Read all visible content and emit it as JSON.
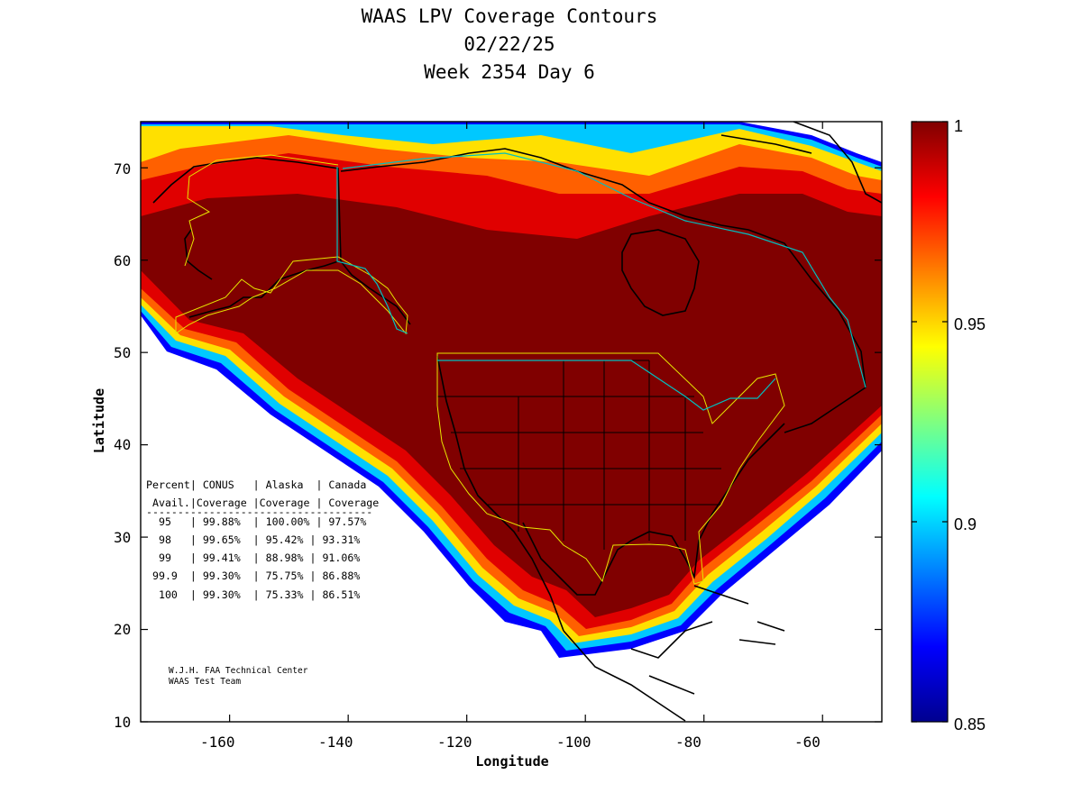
{
  "title": {
    "line1": "WAAS LPV Coverage Contours",
    "line2": "02/22/25",
    "line3": "Week 2354 Day 6"
  },
  "axes": {
    "xlabel": "Longitude",
    "ylabel": "Latitude",
    "xticks": [
      "-160",
      "-140",
      "-120",
      "-100",
      "-80",
      "-60"
    ],
    "yticks": [
      "70",
      "60",
      "50",
      "40",
      "30",
      "20",
      "10"
    ],
    "xlim": [
      -175,
      -50
    ],
    "ylim": [
      10,
      75
    ]
  },
  "colorbar": {
    "ticks": [
      "1",
      "0.95",
      "0.9",
      "0.85"
    ],
    "range": [
      0.85,
      1.0
    ],
    "colormap": "jet"
  },
  "colors": {
    "max": "#800000",
    "red": "#ff0000",
    "orange": "#ff8000",
    "yellow": "#ffff00",
    "cyan": "#00ffff",
    "blue": "#0000ff",
    "navy": "#000080",
    "service_boundary": "#e6e600",
    "border_line": "#00c0c0"
  },
  "stats_table": {
    "header1": "Percent| CONUS   | Alaska  | Canada",
    "header2": " Avail.|Coverage |Coverage | Coverage",
    "rule": "------------------------------------",
    "rows": [
      "  95   | 99.88%  | 100.00% | 97.57%",
      "  98   | 99.65%  | 95.42% | 93.31%",
      "  99   | 99.41%  | 88.98% | 91.06%",
      " 99.9  | 99.30%  | 75.75% | 86.88%",
      "  100  | 99.30%  | 75.33% | 86.51%"
    ]
  },
  "credit": {
    "line1": "W.J.H. FAA Technical Center",
    "line2": "WAAS Test Team"
  }
}
